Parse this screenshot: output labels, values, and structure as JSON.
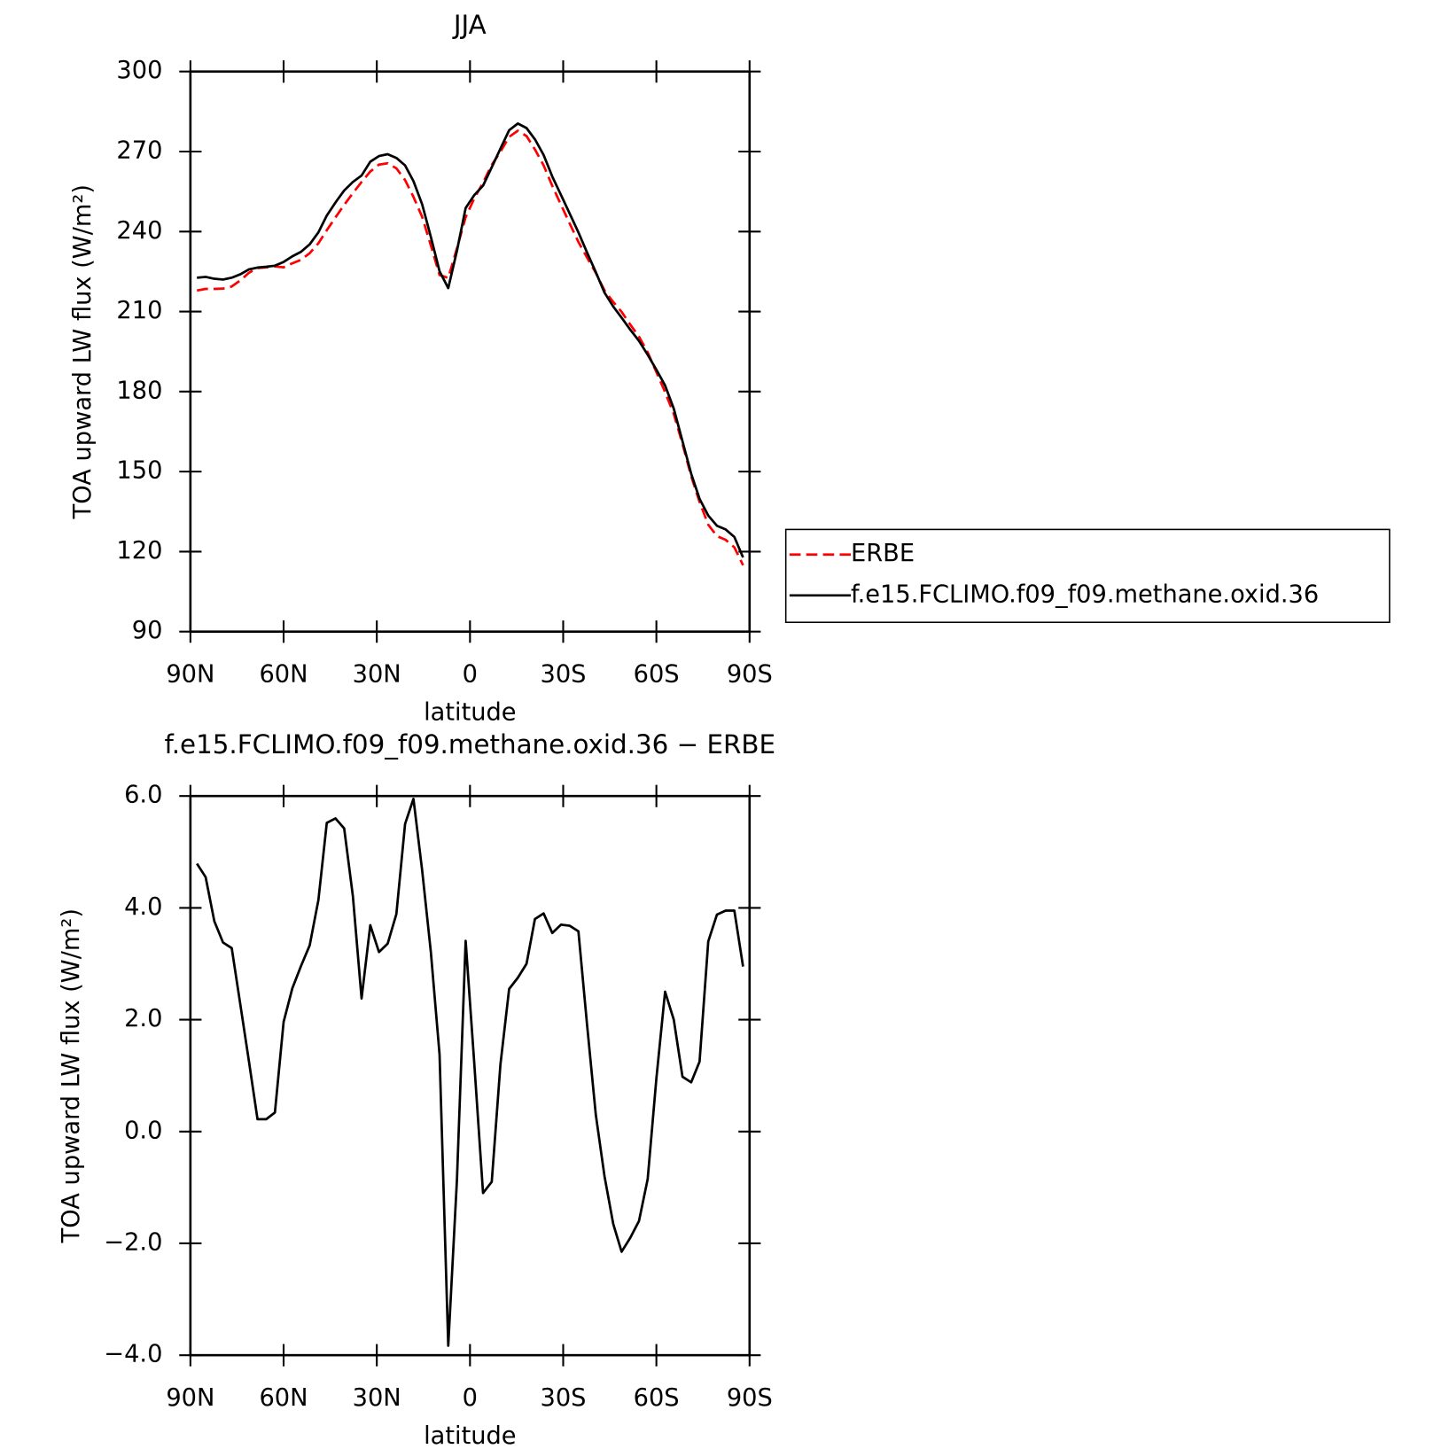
{
  "chart_data": [
    {
      "type": "line",
      "title": "JJA",
      "y_label": "TOA upward LW flux (W/m²)",
      "x_label": "latitude",
      "x": [
        87.9,
        85.1,
        82.3,
        79.5,
        76.7,
        73.9,
        71.2,
        68.4,
        65.6,
        62.8,
        60.0,
        57.2,
        54.4,
        51.6,
        48.8,
        46.1,
        43.3,
        40.5,
        37.7,
        34.9,
        32.1,
        29.3,
        26.5,
        23.7,
        20.9,
        18.2,
        15.4,
        12.6,
        9.8,
        7.0,
        4.2,
        1.4,
        -1.4,
        -4.2,
        -7.0,
        -9.8,
        -12.6,
        -15.4,
        -18.2,
        -20.9,
        -23.7,
        -26.5,
        -29.3,
        -32.1,
        -34.9,
        -37.7,
        -40.5,
        -43.3,
        -46.1,
        -48.8,
        -51.6,
        -54.4,
        -57.2,
        -60.0,
        -62.8,
        -65.6,
        -68.4,
        -71.2,
        -73.9,
        -76.7,
        -79.5,
        -82.3,
        -85.1,
        -87.9
      ],
      "series": [
        {
          "name": "ERBE",
          "color": "#ff0000",
          "dash": "dashed",
          "values": [
            217.9,
            218.5,
            218.5,
            218.6,
            219.4,
            221.7,
            224.5,
            226.3,
            226.6,
            226.9,
            226.6,
            228.1,
            229.4,
            231.9,
            235.6,
            240.5,
            245.3,
            250.0,
            254.4,
            258.6,
            262.5,
            265.1,
            265.6,
            263.7,
            259.3,
            253.0,
            245.5,
            234.8,
            223.7,
            222.6,
            233.7,
            245.4,
            252.5,
            258.3,
            265.0,
            269.9,
            275.5,
            277.8,
            275.8,
            270.8,
            264.8,
            257.1,
            250.0,
            243.0,
            236.1,
            230.2,
            224.5,
            217.9,
            213.6,
            209.9,
            205.1,
            200.6,
            194.7,
            187.3,
            179.8,
            171.6,
            160.4,
            148.3,
            138.6,
            130.1,
            125.8,
            124.4,
            121.6,
            114.9
          ]
        },
        {
          "name": "f.e15.FCLIMO.f09_f09.methane.oxid.36",
          "color": "#000000",
          "dash": "solid",
          "values": [
            222.7,
            223.0,
            222.3,
            222.0,
            222.7,
            224.0,
            225.8,
            226.5,
            226.8,
            227.2,
            228.6,
            230.7,
            232.4,
            235.2,
            239.7,
            246.0,
            250.9,
            255.4,
            258.6,
            261.0,
            266.2,
            268.3,
            269.0,
            267.6,
            264.8,
            258.9,
            250.2,
            238.0,
            225.1,
            218.8,
            232.8,
            248.8,
            253.7,
            257.2,
            264.1,
            271.1,
            278.0,
            280.5,
            278.8,
            274.6,
            268.7,
            260.6,
            253.7,
            246.7,
            239.7,
            232.1,
            224.8,
            217.1,
            211.9,
            207.7,
            203.2,
            199.0,
            193.8,
            188.2,
            182.3,
            173.6,
            161.4,
            149.2,
            139.8,
            133.5,
            129.7,
            128.3,
            125.5,
            117.8
          ]
        }
      ],
      "xlim": [
        90,
        -90
      ],
      "xticks": [
        {
          "value": 90,
          "label": "90N"
        },
        {
          "value": 60,
          "label": "60N"
        },
        {
          "value": 30,
          "label": "30N"
        },
        0,
        {
          "value": -30,
          "label": "30S"
        },
        {
          "value": -60,
          "label": "60S"
        },
        {
          "value": -90,
          "label": "90S"
        }
      ],
      "ylim": [
        90,
        300
      ],
      "yticks": [
        90,
        120,
        150,
        180,
        210,
        240,
        270,
        300
      ],
      "legend": "outside-right"
    },
    {
      "type": "line",
      "title": "f.e15.FCLIMO.f09_f09.methane.oxid.36 − ERBE",
      "y_label": "TOA upward LW flux (W/m²)",
      "x_label": "latitude",
      "x": [
        87.9,
        85.1,
        82.3,
        79.5,
        76.7,
        73.9,
        71.2,
        68.4,
        65.6,
        62.8,
        60.0,
        57.2,
        54.4,
        51.6,
        48.8,
        46.1,
        43.3,
        40.5,
        37.7,
        34.9,
        32.1,
        29.3,
        26.5,
        23.7,
        20.9,
        18.2,
        15.4,
        12.6,
        9.8,
        7.0,
        4.2,
        1.4,
        -1.4,
        -4.2,
        -7.0,
        -9.8,
        -12.6,
        -15.4,
        -18.2,
        -20.9,
        -23.7,
        -26.5,
        -29.3,
        -32.1,
        -34.9,
        -37.7,
        -40.5,
        -43.3,
        -46.1,
        -48.8,
        -51.6,
        -54.4,
        -57.2,
        -60.0,
        -62.8,
        -65.6,
        -68.4,
        -71.2,
        -73.9,
        -76.7,
        -79.5,
        -82.3,
        -85.1,
        -87.9
      ],
      "series": [
        {
          "color": "#000000",
          "dash": "solid",
          "values": [
            4.79,
            4.55,
            3.76,
            3.38,
            3.28,
            2.26,
            1.27,
            0.22,
            0.22,
            0.34,
            1.96,
            2.56,
            2.96,
            3.33,
            4.14,
            5.52,
            5.6,
            5.42,
            4.21,
            2.38,
            3.69,
            3.21,
            3.36,
            3.89,
            5.5,
            5.95,
            4.67,
            3.21,
            1.38,
            -3.83,
            -0.86,
            3.41,
            1.2,
            -1.1,
            -0.9,
            1.2,
            2.55,
            2.75,
            3.0,
            3.8,
            3.9,
            3.55,
            3.7,
            3.68,
            3.58,
            1.9,
            0.3,
            -0.8,
            -1.65,
            -2.15,
            -1.9,
            -1.6,
            -0.85,
            0.95,
            2.5,
            2.0,
            0.98,
            0.88,
            1.25,
            3.4,
            3.88,
            3.95,
            3.95,
            2.95
          ]
        }
      ],
      "xlim": [
        90,
        -90
      ],
      "xticks": [
        {
          "value": 90,
          "label": "90N"
        },
        {
          "value": 60,
          "label": "60N"
        },
        {
          "value": 30,
          "label": "30N"
        },
        0,
        {
          "value": -30,
          "label": "30S"
        },
        {
          "value": -60,
          "label": "60S"
        },
        {
          "value": -90,
          "label": "90S"
        }
      ],
      "ylim": [
        -4,
        6
      ],
      "yticks": [
        {
          "value": -4,
          "label": "−4.0"
        },
        {
          "value": -2,
          "label": "−2.0"
        },
        {
          "value": 0,
          "label": "0.0"
        },
        {
          "value": 2,
          "label": "2.0"
        },
        {
          "value": 4,
          "label": "4.0"
        },
        {
          "value": 6,
          "label": "6.0"
        }
      ]
    }
  ]
}
